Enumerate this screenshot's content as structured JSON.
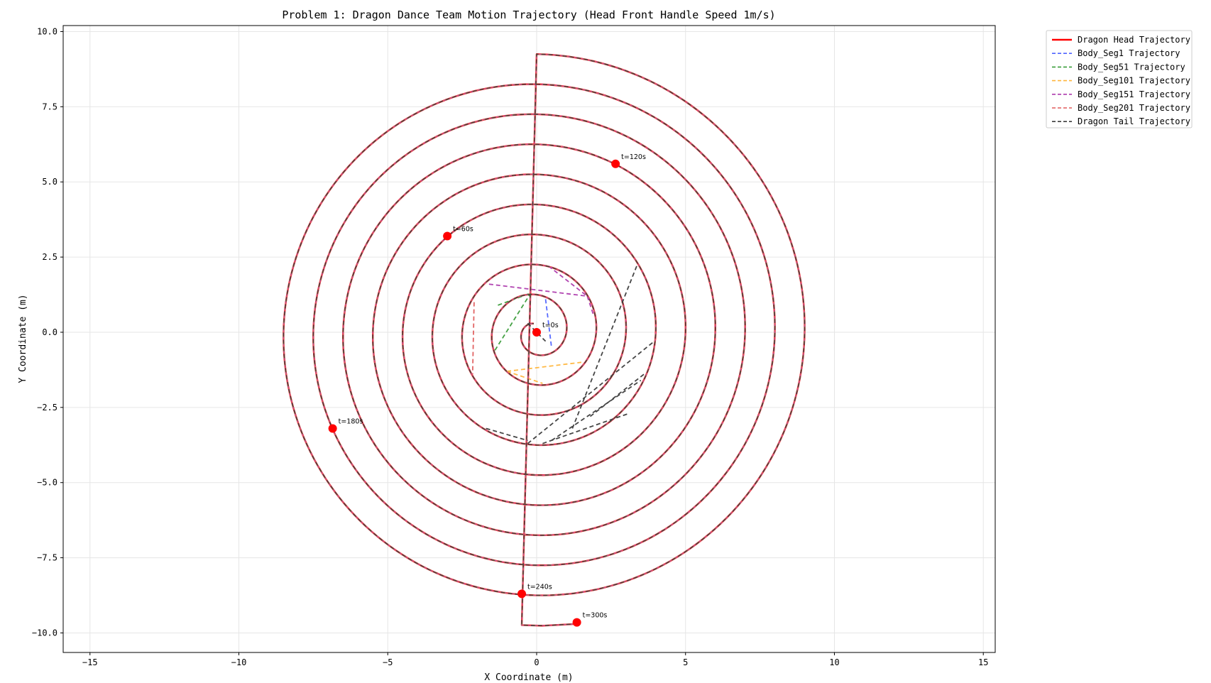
{
  "chart_data": {
    "type": "line",
    "title": "Problem 1: Dragon Dance Team Motion Trajectory (Head Front Handle Speed 1m/s)",
    "xlabel": "X Coordinate (m)",
    "ylabel": "Y Coordinate (m)",
    "xlim": [
      -15.9,
      15.4
    ],
    "ylim": [
      -10.65,
      10.2
    ],
    "xticks": [
      -15,
      -10,
      -5,
      0,
      5,
      10,
      15
    ],
    "xtick_labels": [
      "−15",
      "−10",
      "−5",
      "0",
      "5",
      "10",
      "15"
    ],
    "yticks": [
      -10.0,
      -7.5,
      -5.0,
      -2.5,
      0.0,
      2.5,
      5.0,
      7.5,
      10.0
    ],
    "ytick_labels": [
      "−10.0",
      "−7.5",
      "−5.0",
      "−2.5",
      "0.0",
      "2.5",
      "5.0",
      "7.5",
      "10.0"
    ],
    "grid": true,
    "legend_position": "outside-top-right",
    "spiral": {
      "pitch": 1.0,
      "start_radius": 9.25,
      "end_radius": 0.3,
      "start_angle_deg": 90,
      "direction": "clockwise-inward",
      "head_extension": [
        [
          -0.5,
          -9.74
        ],
        [
          0.2,
          -9.76
        ],
        [
          1.33,
          -9.7
        ]
      ]
    },
    "series": [
      {
        "name": "Dragon Head Trajectory",
        "color": "#ff0000",
        "style": "solid"
      },
      {
        "name": "Body_Seg1 Trajectory",
        "color": "#4f64ff",
        "style": "dashed",
        "extra_segments": [
          [
            [
              0.3,
              1.1
            ],
            [
              0.5,
              -0.5
            ]
          ]
        ]
      },
      {
        "name": "Body_Seg51 Trajectory",
        "color": "#3a9d3a",
        "style": "dashed",
        "extra_segments": [
          [
            [
              -1.4,
              -0.6
            ],
            [
              -0.2,
              1.3
            ]
          ],
          [
            [
              -1.3,
              0.9
            ],
            [
              -0.2,
              1.3
            ]
          ]
        ]
      },
      {
        "name": "Body_Seg101 Trajectory",
        "color": "#ffb63c",
        "style": "dashed",
        "extra_segments": [
          [
            [
              -1.0,
              -1.3
            ],
            [
              1.5,
              -1.0
            ]
          ],
          [
            [
              -1.0,
              -1.3
            ],
            [
              0.2,
              -1.7
            ]
          ]
        ]
      },
      {
        "name": "Body_Seg151 Trajectory",
        "color": "#ad3aad",
        "style": "dashed",
        "extra_segments": [
          [
            [
              -1.6,
              1.6
            ],
            [
              1.7,
              1.2
            ]
          ],
          [
            [
              0.4,
              2.2
            ],
            [
              1.7,
              1.2
            ]
          ],
          [
            [
              1.7,
              1.2
            ],
            [
              1.9,
              0.6
            ]
          ]
        ]
      },
      {
        "name": "Body_Seg201 Trajectory",
        "color": "#e05c5c",
        "style": "dashed",
        "extra_segments": [
          [
            [
              -2.1,
              1.0
            ],
            [
              -2.15,
              -1.4
            ]
          ]
        ]
      },
      {
        "name": "Dragon Tail Trajectory",
        "color": "#3c3c3c",
        "style": "dashed",
        "extra_segments": [
          [
            [
              -1.7,
              -3.2
            ],
            [
              -0.3,
              -3.6
            ]
          ],
          [
            [
              -0.3,
              -3.7
            ],
            [
              3.95,
              -0.3
            ]
          ],
          [
            [
              0.5,
              -3.6
            ],
            [
              3.5,
              -1.6
            ]
          ],
          [
            [
              0.2,
              -3.7
            ],
            [
              3.1,
              -2.7
            ]
          ],
          [
            [
              1.2,
              -3.2
            ],
            [
              3.4,
              2.3
            ]
          ],
          [
            [
              1.8,
              -2.8
            ],
            [
              3.6,
              -1.4
            ]
          ],
          [
            [
              -0.3,
              0.3
            ],
            [
              0.3,
              -0.3
            ]
          ]
        ]
      }
    ],
    "markers": [
      {
        "label": "t=0s",
        "x": 0.0,
        "y": 0.0
      },
      {
        "label": "t=60s",
        "x": -3.0,
        "y": 3.2
      },
      {
        "label": "t=120s",
        "x": 2.65,
        "y": 5.6
      },
      {
        "label": "t=180s",
        "x": -6.85,
        "y": -3.2
      },
      {
        "label": "t=240s",
        "x": -0.5,
        "y": -8.7
      },
      {
        "label": "t=300s",
        "x": 1.35,
        "y": -9.65
      }
    ]
  }
}
